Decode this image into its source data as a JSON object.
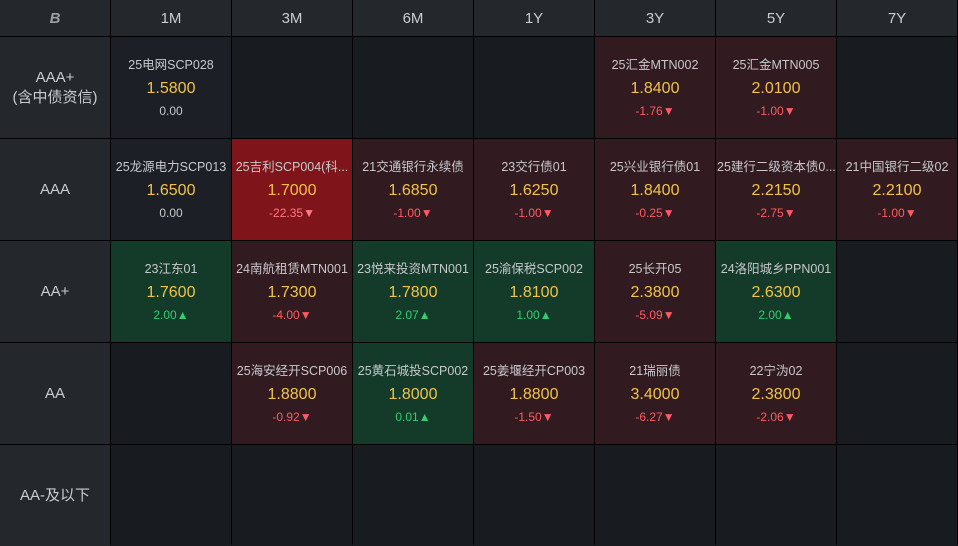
{
  "header": {
    "logo": "B",
    "columns": [
      "1M",
      "3M",
      "6M",
      "1Y",
      "3Y",
      "5Y",
      "7Y"
    ]
  },
  "rows": [
    {
      "label_lines": [
        "AAA+",
        "(含中债资信)"
      ],
      "cells": [
        {
          "name": "25电网SCP028",
          "price": "1.5800",
          "change": "0.00",
          "dir": "neutral"
        },
        null,
        null,
        null,
        {
          "name": "25汇金MTN002",
          "price": "1.8400",
          "change": "-1.76▼",
          "dir": "down"
        },
        {
          "name": "25汇金MTN005",
          "price": "2.0100",
          "change": "-1.00▼",
          "dir": "down"
        },
        null
      ]
    },
    {
      "label_lines": [
        "AAA"
      ],
      "cells": [
        {
          "name": "25龙源电力SCP013",
          "price": "1.6500",
          "change": "0.00",
          "dir": "neutral"
        },
        {
          "name": "25吉利SCP004(科...",
          "price": "1.7000",
          "change": "-22.35▼",
          "dir": "down-strong"
        },
        {
          "name": "21交通银行永续债",
          "price": "1.6850",
          "change": "-1.00▼",
          "dir": "down"
        },
        {
          "name": "23交行债01",
          "price": "1.6250",
          "change": "-1.00▼",
          "dir": "down"
        },
        {
          "name": "25兴业银行债01",
          "price": "1.8400",
          "change": "-0.25▼",
          "dir": "down"
        },
        {
          "name": "25建行二级资本债0...",
          "price": "2.2150",
          "change": "-2.75▼",
          "dir": "down"
        },
        {
          "name": "21中国银行二级02",
          "price": "2.2100",
          "change": "-1.00▼",
          "dir": "down"
        }
      ]
    },
    {
      "label_lines": [
        "AA+"
      ],
      "cells": [
        {
          "name": "23江东01",
          "price": "1.7600",
          "change": "2.00▲",
          "dir": "up"
        },
        {
          "name": "24南航租赁MTN001",
          "price": "1.7300",
          "change": "-4.00▼",
          "dir": "down"
        },
        {
          "name": "23悦来投资MTN001",
          "price": "1.7800",
          "change": "2.07▲",
          "dir": "up"
        },
        {
          "name": "25渝保税SCP002",
          "price": "1.8100",
          "change": "1.00▲",
          "dir": "up"
        },
        {
          "name": "25长开05",
          "price": "2.3800",
          "change": "-5.09▼",
          "dir": "down"
        },
        {
          "name": "24洛阳城乡PPN001",
          "price": "2.6300",
          "change": "2.00▲",
          "dir": "up"
        },
        null
      ]
    },
    {
      "label_lines": [
        "AA"
      ],
      "cells": [
        null,
        {
          "name": "25海安经开SCP006",
          "price": "1.8800",
          "change": "-0.92▼",
          "dir": "down"
        },
        {
          "name": "25黄石城投SCP002",
          "price": "1.8000",
          "change": "0.01▲",
          "dir": "up"
        },
        {
          "name": "25姜堰经开CP003",
          "price": "1.8800",
          "change": "-1.50▼",
          "dir": "down"
        },
        {
          "name": "21瑞丽债",
          "price": "3.4000",
          "change": "-6.27▼",
          "dir": "down"
        },
        {
          "name": "22宁沩02",
          "price": "2.3800",
          "change": "-2.06▼",
          "dir": "down"
        },
        null
      ]
    },
    {
      "label_lines": [
        "AA-及以下"
      ],
      "cells": [
        null,
        null,
        null,
        null,
        null,
        null,
        null
      ]
    }
  ]
}
